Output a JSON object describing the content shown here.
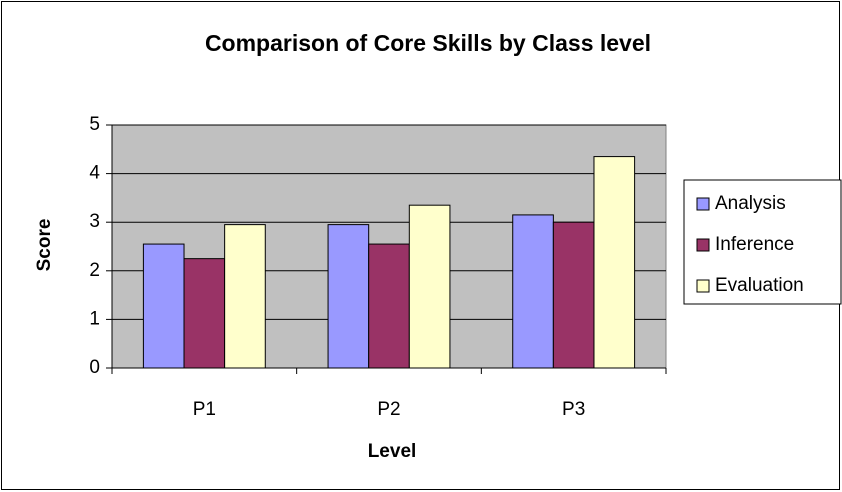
{
  "chart_data": {
    "type": "bar",
    "title": "Comparison of Core Skills by Class level",
    "x_label": "Level",
    "y_label": "Score",
    "categories": [
      "P1",
      "P2",
      "P3"
    ],
    "series": [
      {
        "name": "Analysis",
        "color": "#9999ff",
        "values": [
          2.55,
          2.95,
          3.15
        ]
      },
      {
        "name": "Inference",
        "color": "#993366",
        "values": [
          2.25,
          2.55,
          3.0
        ]
      },
      {
        "name": "Evaluation",
        "color": "#ffffcc",
        "values": [
          2.95,
          3.35,
          4.35
        ]
      }
    ],
    "ylim": [
      0,
      5
    ],
    "yticks": [
      0,
      1,
      2,
      3,
      4,
      5
    ],
    "grid": true,
    "legend": "right"
  }
}
